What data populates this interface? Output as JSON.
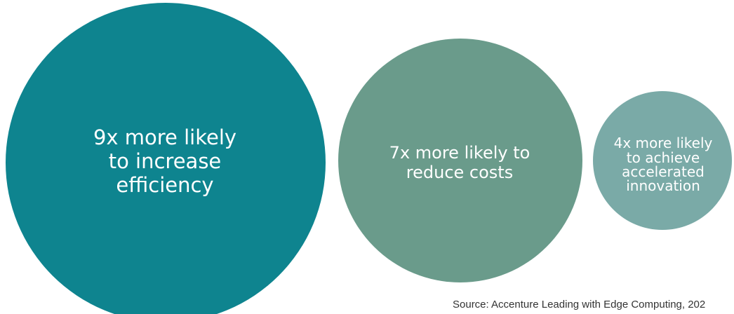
{
  "chart_data": {
    "type": "bubble",
    "title": "",
    "items": [
      {
        "multiplier": 9,
        "label_lines": [
          "9x more likely",
          "to increase",
          "efficiency"
        ],
        "color": "#0e848f"
      },
      {
        "multiplier": 7,
        "label_lines": [
          "7x more likely to",
          "reduce costs"
        ],
        "color": "#6a9b8b"
      },
      {
        "multiplier": 4,
        "label_lines": [
          "4x more likely",
          "to achieve",
          "accelerated",
          "innovation"
        ],
        "color": "#7aaaa7"
      }
    ],
    "source": "Source: Accenture Leading with Edge Computing, 202"
  }
}
